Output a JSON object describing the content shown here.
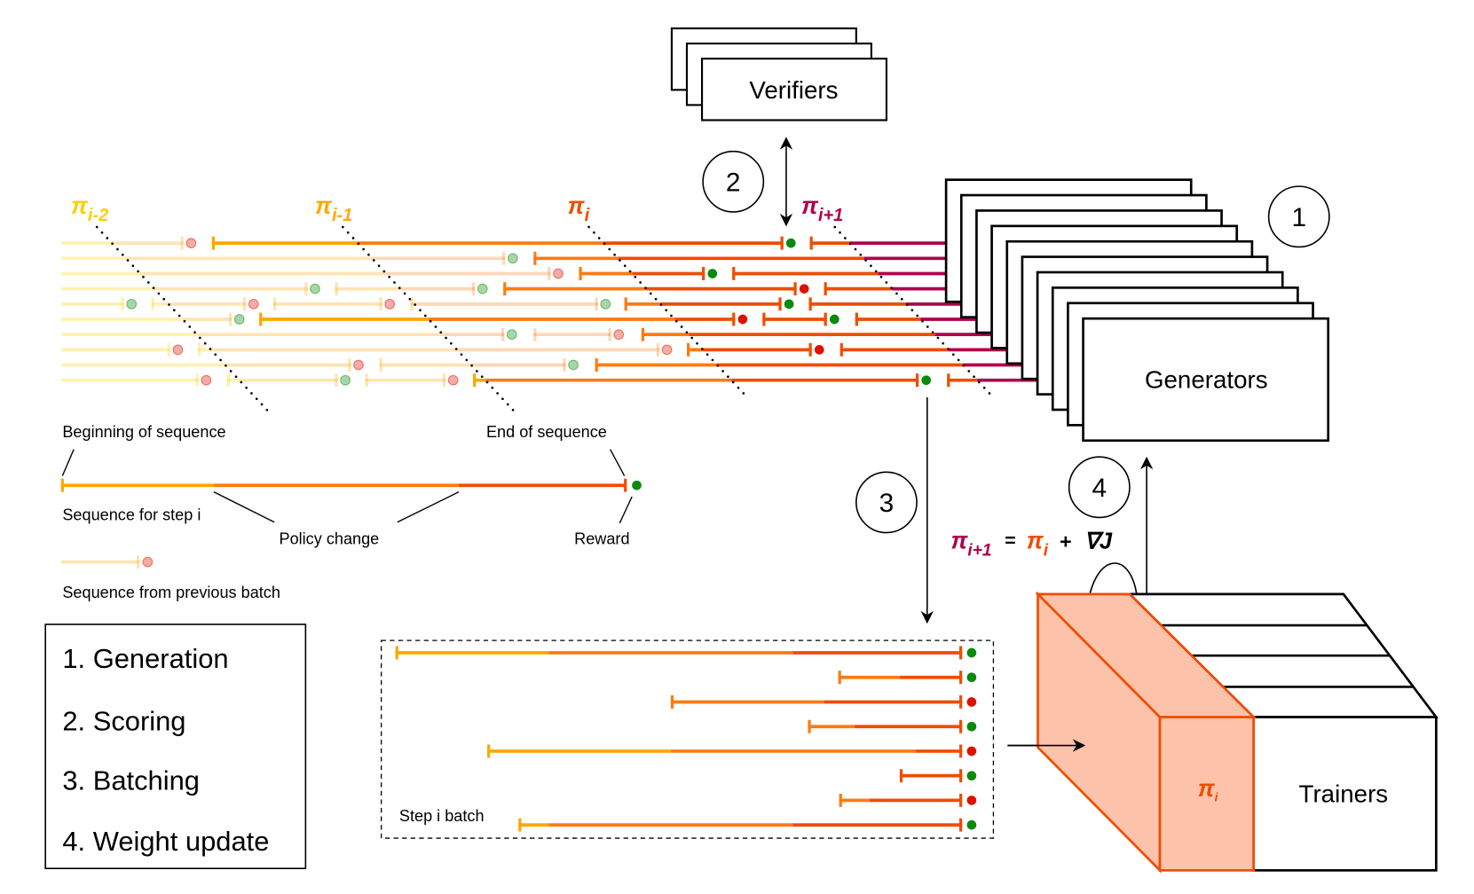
{
  "policy_labels": [
    {
      "base": "π",
      "sub": "i-2",
      "color": "#ffd000"
    },
    {
      "base": "π",
      "sub": "i-1",
      "color": "#ffaa00"
    },
    {
      "base": "π",
      "sub": "i",
      "color": "#f04c00"
    },
    {
      "base": "π",
      "sub": "i+1",
      "color": "#b0004a"
    }
  ],
  "colors": {
    "reward_pass": "#0a8a0a",
    "reward_fail": "#dd1100",
    "trainer_fill": "#fdc3aa",
    "trainer_stroke": "#f04c00"
  },
  "components": {
    "verifiers": "Verifiers",
    "generators": "Generators",
    "trainers": "Trainers",
    "trainer_policy": {
      "base": "π",
      "sub": "i"
    }
  },
  "step_markers": [
    "1",
    "2",
    "3",
    "4"
  ],
  "legend": {
    "beginning": "Beginning of sequence",
    "end": "End of sequence",
    "sequence_step": "Sequence for step i",
    "policy_change": "Policy change",
    "reward": "Reward",
    "previous_batch": "Sequence from previous batch"
  },
  "steps": [
    "1. Generation",
    "2. Scoring",
    "3. Batching",
    "4. Weight update"
  ],
  "batch": {
    "label": "Step i batch",
    "rewards": [
      "pass",
      "pass",
      "fail",
      "pass",
      "fail",
      "pass",
      "fail",
      "pass"
    ]
  },
  "formula": {
    "lhs": {
      "base": "π",
      "sub": "i+1"
    },
    "eq": "=",
    "rhs": {
      "base": "π",
      "sub": "i"
    },
    "plus": "+",
    "grad": "∇J"
  },
  "timeline_rewards": [
    [
      "fail",
      "pass"
    ],
    [
      "pass"
    ],
    [
      "fail",
      "pass"
    ],
    [
      "pass",
      "pass",
      "fail"
    ],
    [
      "pass",
      "fail",
      "fail",
      "pass",
      "pass"
    ],
    [
      "pass",
      "fail",
      "pass"
    ],
    [
      "pass",
      "fail"
    ],
    [
      "fail",
      "fail",
      "fail"
    ],
    [
      "fail",
      "pass"
    ],
    [
      "fail",
      "pass",
      "fail",
      "pass"
    ]
  ]
}
